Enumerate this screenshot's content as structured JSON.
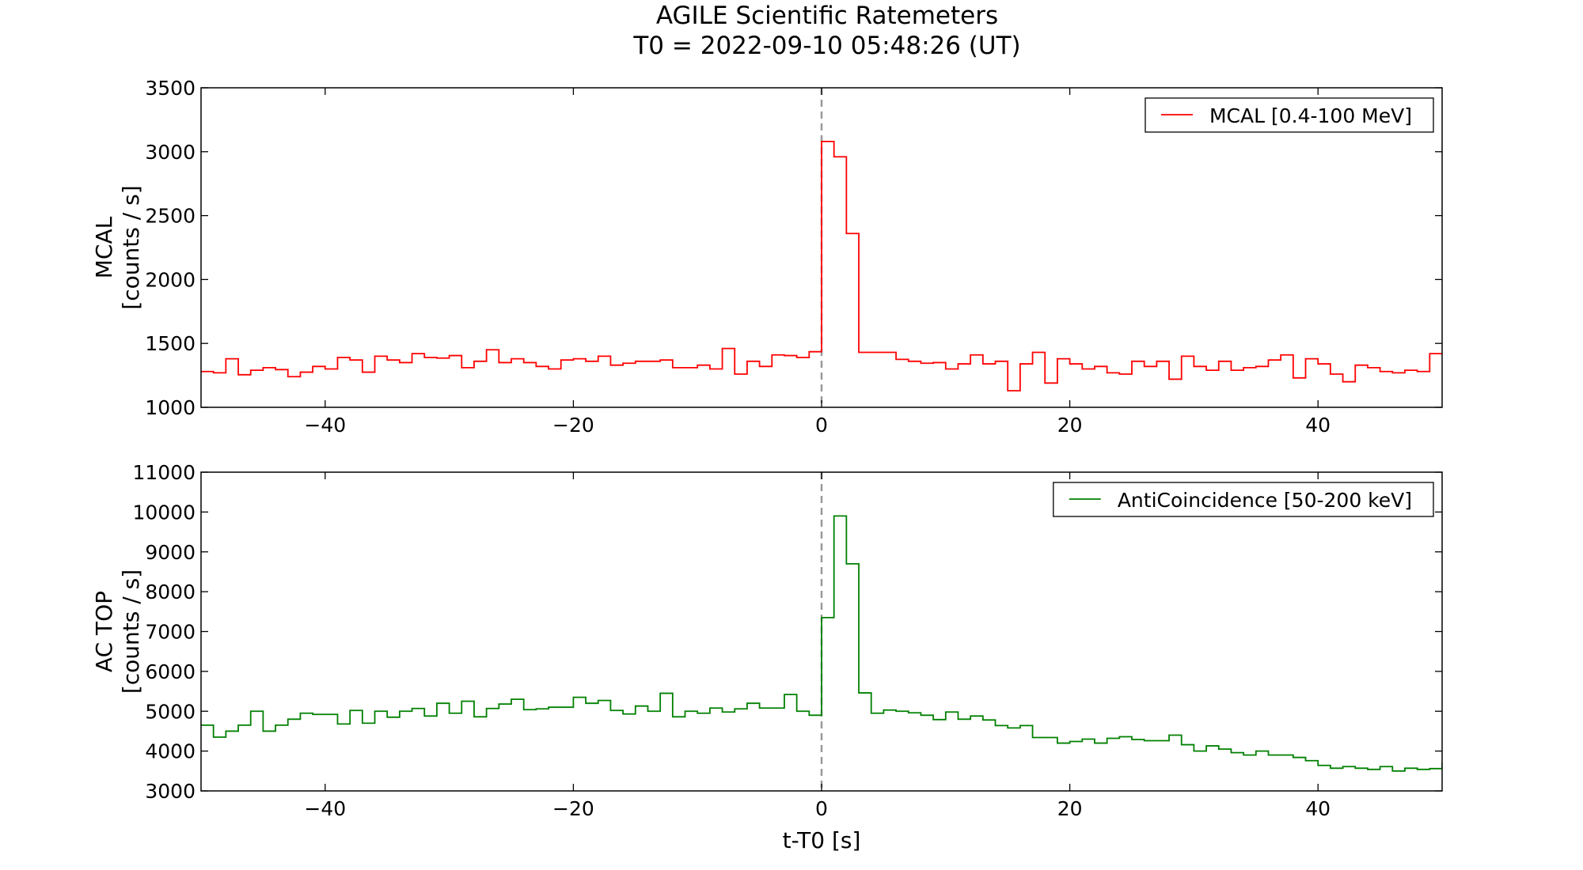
{
  "figure": {
    "title_line1": "AGILE Scientific Ratemeters",
    "title_line2": "T0 = 2022-09-10 05:48:26 (UT)"
  },
  "chart_data": [
    {
      "type": "line",
      "step": true,
      "panel": "top",
      "xlim": [
        -50,
        50
      ],
      "ylim": [
        1000,
        3500
      ],
      "xticks": [
        -40,
        -20,
        0,
        20,
        40
      ],
      "xtick_labels": [
        "−40",
        "−20",
        "0",
        "20",
        "40"
      ],
      "yticks": [
        1000,
        1500,
        2000,
        2500,
        3000,
        3500
      ],
      "ytick_labels": [
        "1000",
        "1500",
        "2000",
        "2500",
        "3000",
        "3500"
      ],
      "ylabel_line1": "MCAL",
      "ylabel_line2": "[counts / s]",
      "xlabel": "",
      "vline_x": 0,
      "legend_position": "top-right",
      "series": [
        {
          "name": "MCAL [0.4-100 MeV]",
          "color": "#ff0000",
          "x_start": -50,
          "bin_width": 1,
          "values": [
            1280,
            1270,
            1380,
            1255,
            1290,
            1310,
            1295,
            1240,
            1275,
            1320,
            1300,
            1390,
            1370,
            1275,
            1400,
            1370,
            1350,
            1420,
            1390,
            1385,
            1405,
            1310,
            1360,
            1450,
            1350,
            1380,
            1350,
            1320,
            1300,
            1370,
            1380,
            1360,
            1400,
            1330,
            1345,
            1360,
            1360,
            1370,
            1310,
            1310,
            1330,
            1300,
            1460,
            1260,
            1360,
            1320,
            1410,
            1405,
            1390,
            1435,
            3080,
            2960,
            2360,
            1430,
            1430,
            1430,
            1375,
            1360,
            1345,
            1350,
            1300,
            1340,
            1410,
            1340,
            1360,
            1130,
            1340,
            1430,
            1190,
            1380,
            1340,
            1300,
            1320,
            1270,
            1260,
            1360,
            1320,
            1360,
            1220,
            1400,
            1320,
            1290,
            1360,
            1290,
            1310,
            1320,
            1370,
            1410,
            1230,
            1380,
            1340,
            1260,
            1200,
            1330,
            1310,
            1280,
            1270,
            1290,
            1280,
            1420
          ]
        }
      ]
    },
    {
      "type": "line",
      "step": true,
      "panel": "bottom",
      "xlim": [
        -50,
        50
      ],
      "ylim": [
        3000,
        11000
      ],
      "xticks": [
        -40,
        -20,
        0,
        20,
        40
      ],
      "xtick_labels": [
        "−40",
        "−20",
        "0",
        "20",
        "40"
      ],
      "yticks": [
        3000,
        4000,
        5000,
        6000,
        7000,
        8000,
        9000,
        10000,
        11000
      ],
      "ytick_labels": [
        "3000",
        "4000",
        "5000",
        "6000",
        "7000",
        "8000",
        "9000",
        "10000",
        "11000"
      ],
      "ylabel_line1": "AC TOP",
      "ylabel_line2": "[counts / s]",
      "xlabel": "t-T0 [s]",
      "vline_x": 0,
      "legend_position": "top-right",
      "series": [
        {
          "name": "AntiCoincidence [50-200 keV]",
          "color": "#008000",
          "x_start": -50,
          "bin_width": 1,
          "values": [
            4650,
            4350,
            4500,
            4650,
            5000,
            4500,
            4650,
            4800,
            4950,
            4920,
            4920,
            4680,
            5020,
            4700,
            5000,
            4850,
            5000,
            5070,
            4880,
            5200,
            4950,
            5250,
            4860,
            5070,
            5180,
            5300,
            5040,
            5060,
            5100,
            5100,
            5350,
            5200,
            5270,
            5020,
            4930,
            5130,
            5000,
            5450,
            4860,
            5000,
            4950,
            5080,
            4980,
            5060,
            5200,
            5080,
            5080,
            5420,
            5000,
            4900,
            7350,
            9900,
            8700,
            5460,
            4950,
            5030,
            5000,
            4960,
            4900,
            4790,
            4980,
            4800,
            4880,
            4780,
            4640,
            4580,
            4640,
            4340,
            4340,
            4200,
            4240,
            4300,
            4200,
            4320,
            4360,
            4290,
            4260,
            4260,
            4400,
            4160,
            4000,
            4130,
            4050,
            3960,
            3900,
            4000,
            3900,
            3900,
            3840,
            3760,
            3640,
            3570,
            3610,
            3570,
            3540,
            3610,
            3500,
            3570,
            3540,
            3560,
            3700
          ]
        }
      ]
    }
  ]
}
